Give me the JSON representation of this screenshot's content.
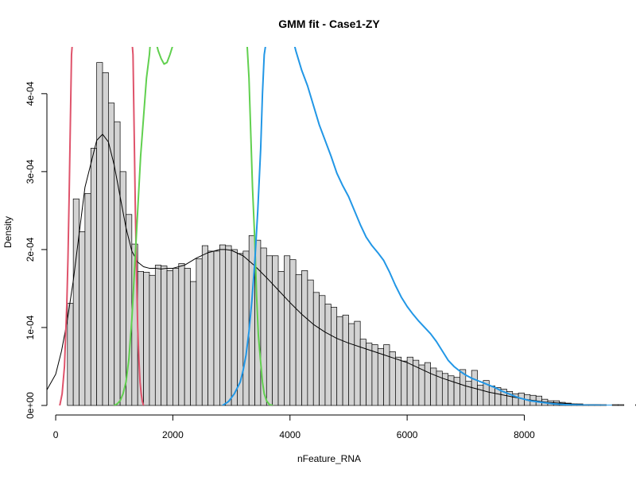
{
  "chart_data": {
    "type": "histogram",
    "title": "GMM fit - Case1-ZY",
    "xlabel": "nFeature_RNA",
    "ylabel": "Density",
    "xlim": [
      -150,
      9500
    ],
    "ylim": [
      0,
      0.00046
    ],
    "x_ticks": [
      {
        "value": 0,
        "label": "0"
      },
      {
        "value": 2000,
        "label": "2000"
      },
      {
        "value": 4000,
        "label": "4000"
      },
      {
        "value": 6000,
        "label": "6000"
      },
      {
        "value": 8000,
        "label": "8000"
      }
    ],
    "y_ticks": [
      {
        "value": 0,
        "label": "0e+00"
      },
      {
        "value": 0.0001,
        "label": "1e-04"
      },
      {
        "value": 0.0002,
        "label": "2e-04"
      },
      {
        "value": 0.0003,
        "label": "3e-04"
      },
      {
        "value": 0.0004,
        "label": "4e-04"
      }
    ],
    "bin_start": 200,
    "bin_width": 100,
    "densities": [
      0.000131,
      0.000265,
      0.000223,
      0.000272,
      0.00033,
      0.00044,
      0.000427,
      0.000388,
      0.000364,
      0.0003,
      0.000245,
      0.000207,
      0.000172,
      0.000171,
      0.000167,
      0.00018,
      0.000179,
      0.000173,
      0.000176,
      0.000182,
      0.000176,
      0.000159,
      0.000188,
      0.000205,
      0.000198,
      0.000198,
      0.000206,
      0.000205,
      0.0002,
      0.000195,
      0.000198,
      0.000218,
      0.000212,
      0.000202,
      0.000192,
      0.000192,
      0.000172,
      0.000192,
      0.000187,
      0.000168,
      0.000173,
      0.000161,
      0.000145,
      0.000141,
      0.00013,
      0.000126,
      0.000114,
      0.000116,
      0.000105,
      0.000108,
      8.5e-05,
      8e-05,
      7.8e-05,
      7.3e-05,
      7.8e-05,
      6.9e-05,
      6.2e-05,
      5.7e-05,
      6.2e-05,
      5.8e-05,
      5.2e-05,
      5.5e-05,
      4.8e-05,
      4.4e-05,
      4.1e-05,
      3.8e-05,
      3.6e-05,
      4.6e-05,
      3.1e-05,
      4.5e-05,
      2.6e-05,
      3.2e-05,
      2.5e-05,
      2.3e-05,
      2.1e-05,
      1.8e-05,
      1.5e-05,
      1.6e-05,
      1.4e-05,
      1.3e-05,
      1.2e-05,
      8e-06,
      6e-06,
      6e-06,
      4e-06,
      3e-06,
      2e-06,
      2e-06,
      1e-06,
      1e-06,
      1e-06,
      1e-06,
      0,
      1e-06,
      1e-06,
      0,
      0,
      1e-06,
      0,
      0
    ],
    "bar_fill": "#d3d3d3",
    "bar_stroke": "#000000",
    "series": [
      {
        "color": "#000000",
        "width": 1,
        "x": [
          -150,
          0,
          100,
          200,
          300,
          400,
          500,
          600,
          700,
          800,
          900,
          1000,
          1100,
          1200,
          1300,
          1400,
          1500,
          1600,
          1700,
          1800,
          1900,
          2000,
          2200,
          2400,
          2600,
          2800,
          2900,
          3000,
          3200,
          3400,
          3600,
          3800,
          4000,
          4200,
          4400,
          4600,
          4800,
          5000,
          5200,
          5400,
          5600,
          5800,
          6000,
          6200,
          6400,
          6600,
          6800,
          7000,
          7200,
          7400,
          7600,
          7800,
          8000,
          8200,
          8400,
          8600,
          8800,
          9000,
          9200,
          9500
        ],
        "y": [
          2e-05,
          4e-05,
          7e-05,
          0.00011,
          0.00016,
          0.00022,
          0.00028,
          0.00031,
          0.00034,
          0.000348,
          0.000338,
          0.000308,
          0.000268,
          0.000228,
          0.000198,
          0.000184,
          0.000178,
          0.000176,
          0.000176,
          0.000175,
          0.000176,
          0.000176,
          0.00018,
          0.000189,
          0.000196,
          0.0002,
          0.0002,
          0.000199,
          0.000192,
          0.000179,
          0.000164,
          0.000148,
          0.000132,
          0.000117,
          0.000104,
          9.4e-05,
          8.6e-05,
          8e-05,
          7.5e-05,
          7e-05,
          6.5e-05,
          6e-05,
          5.5e-05,
          4.8e-05,
          4.1e-05,
          3.5e-05,
          3e-05,
          2.5e-05,
          2.1e-05,
          1.7e-05,
          1.4e-05,
          1.1e-05,
          8e-06,
          6e-06,
          4e-06,
          3e-06,
          2e-06,
          1e-06,
          1e-06,
          0
        ]
      },
      {
        "color": "#DF536B",
        "width": 2,
        "x": [
          70,
          110,
          150,
          190,
          210,
          230,
          250,
          270,
          290,
          1300,
          1320,
          1340,
          1360,
          1380,
          1400,
          1420,
          1440,
          1460,
          1480,
          1500
        ],
        "y": [
          0,
          1.5e-05,
          5e-05,
          0.00013,
          0.00019,
          0.00027,
          0.00036,
          0.00045,
          0.00047,
          0.00047,
          0.00045,
          0.00035,
          0.00025,
          0.00017,
          0.0001,
          6e-05,
          3e-05,
          1.5e-05,
          5e-06,
          0
        ]
      },
      {
        "color": "#61D04F",
        "width": 2,
        "x": [
          1000,
          1050,
          1100,
          1150,
          1200,
          1250,
          1300,
          1350,
          1400,
          1450,
          1500,
          1550,
          1600,
          1620,
          1650,
          1700,
          1750,
          1800,
          1850,
          1900,
          1950,
          2000,
          2020,
          3250,
          3270,
          3300,
          3330,
          3360,
          3400,
          3430,
          3460,
          3500,
          3530,
          3560,
          3600,
          3650,
          3700
        ],
        "y": [
          0,
          2e-06,
          6e-06,
          1.5e-05,
          3e-05,
          6e-05,
          0.00011,
          0.00018,
          0.00025,
          0.00032,
          0.00037,
          0.00042,
          0.00045,
          0.00047,
          0.00047,
          0.00047,
          0.000455,
          0.000445,
          0.000438,
          0.00044,
          0.00045,
          0.000462,
          0.00047,
          0.00047,
          0.00046,
          0.00042,
          0.00035,
          0.00028,
          0.00021,
          0.00014,
          9e-05,
          5.5e-05,
          3e-05,
          1.5e-05,
          6e-06,
          1e-06,
          0
        ]
      },
      {
        "color": "#2297E6",
        "width": 2,
        "x": [
          2850,
          2950,
          3050,
          3150,
          3200,
          3250,
          3300,
          3350,
          3400,
          3450,
          3500,
          3530,
          3560,
          3600,
          4050,
          4100,
          4200,
          4300,
          4400,
          4500,
          4600,
          4700,
          4800,
          4900,
          5000,
          5100,
          5200,
          5300,
          5400,
          5500,
          5600,
          5700,
          5800,
          5900,
          6000,
          6100,
          6200,
          6300,
          6400,
          6500,
          6600,
          6700,
          6800,
          6900,
          7000,
          7100,
          7200,
          7300,
          7400,
          7500,
          7600,
          7700,
          7800,
          7900,
          8000,
          8100,
          8200,
          8300,
          8400,
          8500,
          8600,
          8700,
          8800,
          8900,
          9000,
          9100,
          9200,
          9300,
          9400,
          9500
        ],
        "y": [
          0,
          5e-06,
          1.5e-05,
          3e-05,
          4.5e-05,
          6.5e-05,
          9.5e-05,
          0.000135,
          0.000185,
          0.00025,
          0.00033,
          0.0004,
          0.00045,
          0.00047,
          0.00047,
          0.000455,
          0.00043,
          0.00041,
          0.000385,
          0.00036,
          0.00034,
          0.00032,
          0.000298,
          0.000282,
          0.000268,
          0.00025,
          0.000232,
          0.000216,
          0.000205,
          0.000196,
          0.000186,
          0.000171,
          0.000154,
          0.000139,
          0.000127,
          0.000117,
          0.000108,
          0.0001,
          9.2e-05,
          8.2e-05,
          7e-05,
          5.8e-05,
          5e-05,
          4.4e-05,
          3.9e-05,
          3.5e-05,
          3.2e-05,
          2.9e-05,
          2.6e-05,
          2.3e-05,
          1.9e-05,
          1.6e-05,
          1.3e-05,
          1e-05,
          8e-06,
          6e-06,
          5e-06,
          4e-06,
          3e-06,
          2e-06,
          1.5e-06,
          1e-06,
          8e-07,
          6e-07,
          4e-07,
          3e-07,
          2e-07,
          1e-07,
          0,
          0
        ]
      }
    ]
  }
}
